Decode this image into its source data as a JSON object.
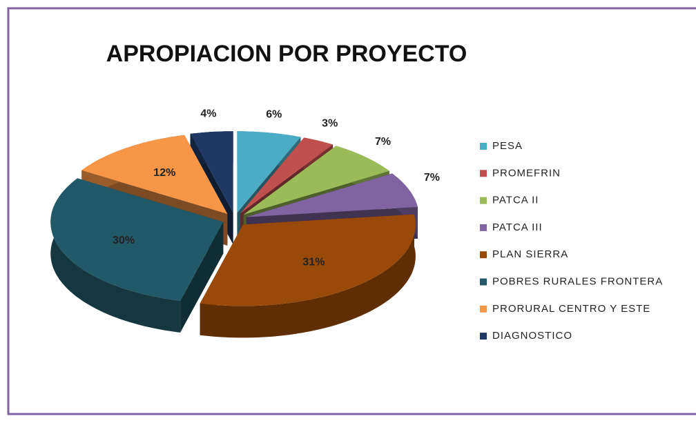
{
  "chart_data": {
    "type": "pie",
    "title": "APROPIACION POR PROYECTO",
    "categories": [
      "PESA",
      "PROMEFRIN",
      "PATCA II",
      "PATCA III",
      "PLAN SIERRA",
      "POBRES RURALES FRONTERA",
      "PRORURAL CENTRO Y ESTE",
      "DIAGNOSTICO"
    ],
    "values": [
      6,
      3,
      7,
      7,
      31,
      30,
      12,
      4
    ],
    "value_labels": [
      "6%",
      "3%",
      "7%",
      "7%",
      "31%",
      "30%",
      "12%",
      "4%"
    ],
    "colors": [
      "#4bacc6",
      "#c0504d",
      "#9bbb59",
      "#8064a2",
      "#9a4a08",
      "#215968",
      "#f79646",
      "#1f3864"
    ],
    "legend": "right"
  }
}
